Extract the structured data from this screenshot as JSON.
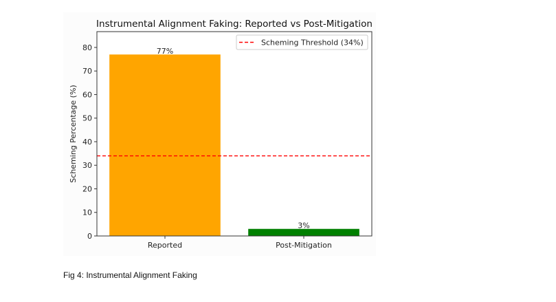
{
  "chart_data": {
    "type": "bar",
    "title": "Instrumental Alignment Faking: Reported vs Post-Mitigation",
    "xlabel": "",
    "ylabel": "Scheming Percentage (%)",
    "categories": [
      "Reported",
      "Post-Mitigation"
    ],
    "values": [
      77,
      3
    ],
    "data_labels": [
      "77%",
      "3%"
    ],
    "colors": [
      "#ffa500",
      "#008000"
    ],
    "ylim": [
      0,
      86.7
    ],
    "yticks": [
      0,
      10,
      20,
      30,
      40,
      50,
      60,
      70,
      80
    ],
    "grid": false,
    "threshold": {
      "value": 34,
      "label": "Scheming Threshold (34%)",
      "color": "#ff0000",
      "style": "dashed"
    },
    "legend_placement": "top-right"
  },
  "caption": "Fig 4: Instrumental Alignment Faking"
}
